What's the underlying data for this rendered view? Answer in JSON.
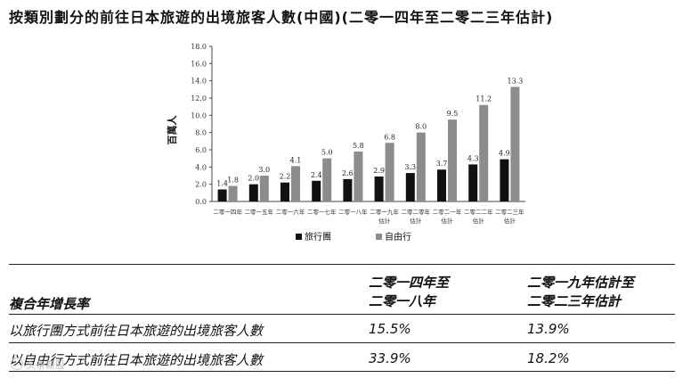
{
  "title": "按類別劃分的前往日本旅遊的出境旅客人數(中國)(二零一四年至二零二三年估計)",
  "chart_data": {
    "type": "bar",
    "ylabel": "百萬人",
    "ylim": [
      0,
      18
    ],
    "yticks": [
      "0.0",
      "2.0",
      "4.0",
      "6.0",
      "8.0",
      "10.0",
      "12.0",
      "14.0",
      "16.0",
      "18.0"
    ],
    "categories": [
      [
        "二零一四年"
      ],
      [
        "二零一五年"
      ],
      [
        "二零一六年"
      ],
      [
        "二零一七年"
      ],
      [
        "二零一八年"
      ],
      [
        "二零一九年",
        "估計"
      ],
      [
        "二零二零年",
        "估計"
      ],
      [
        "二零二一年",
        "估計"
      ],
      [
        "二零二二年",
        "估計"
      ],
      [
        "二零二三年",
        "估計"
      ]
    ],
    "series": [
      {
        "name": "旅行團",
        "color": "#111111",
        "values": [
          1.4,
          2.0,
          2.2,
          2.4,
          2.6,
          2.9,
          3.3,
          3.7,
          4.3,
          4.9
        ]
      },
      {
        "name": "自由行",
        "color": "#8c8c8c",
        "values": [
          1.8,
          3.0,
          4.1,
          5.0,
          5.8,
          6.8,
          8.0,
          9.5,
          11.2,
          13.3
        ]
      }
    ],
    "legend_position": "bottom"
  },
  "table": {
    "header_label": "複合年增長率",
    "col1_line1": "二零一四年至",
    "col1_line2": "二零一八年",
    "col2_line1": "二零一九年估計至",
    "col2_line2": "二零二三年估計",
    "rows": [
      {
        "label": "以旅行團方式前往日本旅遊的出境旅客人數",
        "v1": "15.5%",
        "v2": "13.9%"
      },
      {
        "label": "以自由行方式前往日本旅遊的出境旅客人數",
        "v1": "33.9%",
        "v2": "18.2%"
      }
    ]
  },
  "watermark": "头条新股"
}
